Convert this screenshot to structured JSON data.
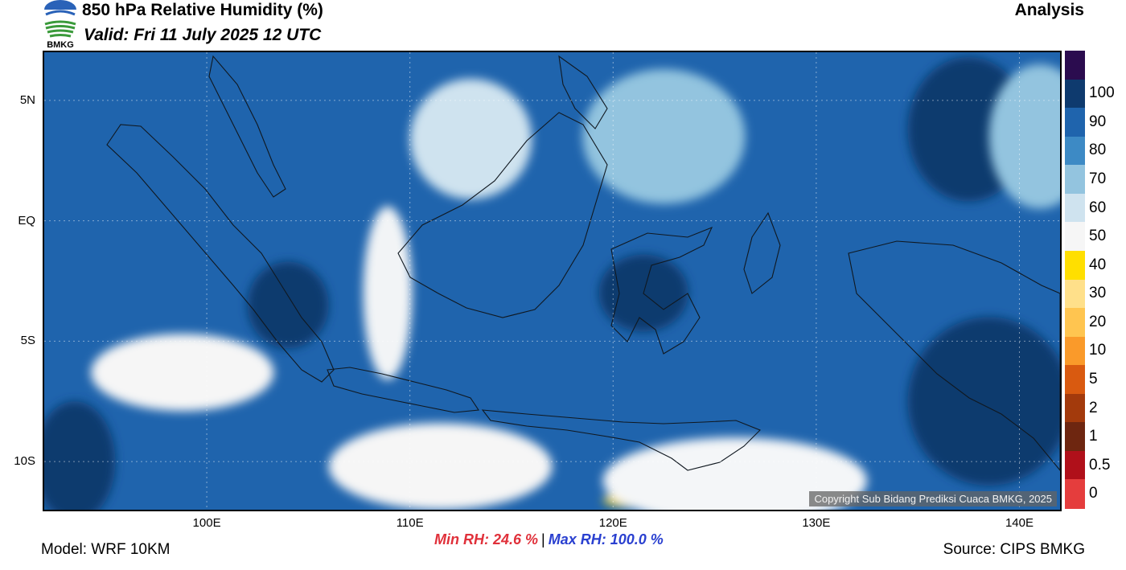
{
  "header": {
    "logo_text": "BMKG",
    "title": "850 hPa Relative Humidity (%)",
    "valid": "Valid: Fri 11 July 2025 12 UTC",
    "analysis": "Analysis"
  },
  "map": {
    "lon_range": [
      92,
      142
    ],
    "lat_range": [
      -12,
      7
    ],
    "x_ticks": [
      {
        "lon": 100,
        "label": "100E"
      },
      {
        "lon": 110,
        "label": "110E"
      },
      {
        "lon": 120,
        "label": "120E"
      },
      {
        "lon": 130,
        "label": "130E"
      },
      {
        "lon": 140,
        "label": "140E"
      }
    ],
    "y_ticks": [
      {
        "lat": 5,
        "label": "5N"
      },
      {
        "lat": 0,
        "label": "EQ"
      },
      {
        "lat": -5,
        "label": "5S"
      },
      {
        "lat": -10,
        "label": "10S"
      }
    ],
    "background_color": "#1f64ad",
    "dry_zones": [
      {
        "lon": 99.5,
        "lat": -6.1,
        "rlon": 2.4,
        "rlat": 0.7,
        "color": "#ffdf00"
      },
      {
        "lon": 98.8,
        "lat": -6.3,
        "rlon": 4.5,
        "rlat": 1.6,
        "color": "#f6f6f6"
      },
      {
        "lon": 108.9,
        "lat": -1.8,
        "rlon": 0.4,
        "rlat": 0.7,
        "color": "#ffdf00"
      },
      {
        "lon": 108.9,
        "lat": -3.0,
        "rlon": 1.2,
        "rlat": 3.6,
        "color": "#f2f4f6"
      },
      {
        "lon": 111.2,
        "lat": -9.9,
        "rlon": 2.8,
        "rlat": 1.0,
        "color": "#ffe08a"
      },
      {
        "lon": 111.5,
        "lat": -10.2,
        "rlon": 5.5,
        "rlat": 1.8,
        "color": "#f6f6f6"
      },
      {
        "lon": 124.5,
        "lat": -11.6,
        "rlon": 5.0,
        "rlat": 0.5,
        "color": "#ffdf00"
      },
      {
        "lon": 126.0,
        "lat": -10.8,
        "rlon": 6.5,
        "rlat": 1.8,
        "color": "#f4f6f8"
      },
      {
        "lon": 113.0,
        "lat": 3.4,
        "rlon": 3.0,
        "rlat": 2.5,
        "color": "#cfe3ef"
      },
      {
        "lon": 122.5,
        "lat": 3.5,
        "rlon": 4.0,
        "rlat": 2.8,
        "color": "#93c4df"
      },
      {
        "lon": 141.0,
        "lat": 3.5,
        "rlon": 2.5,
        "rlat": 3.0,
        "color": "#93c4df"
      }
    ],
    "moist_zones": [
      {
        "lon": 137.5,
        "lat": 3.8,
        "rlon": 3.0,
        "rlat": 3.0,
        "color": "#0e3a6e"
      },
      {
        "lon": 138.5,
        "lat": -7.5,
        "rlon": 4.0,
        "rlat": 3.5,
        "color": "#0e3a6e"
      },
      {
        "lon": 104.0,
        "lat": -3.5,
        "rlon": 2.0,
        "rlat": 1.8,
        "color": "#0e3a6e"
      },
      {
        "lon": 121.5,
        "lat": -3.0,
        "rlon": 2.2,
        "rlat": 1.6,
        "color": "#0e3a6e"
      },
      {
        "lon": 93.5,
        "lat": -10.0,
        "rlon": 2.0,
        "rlat": 2.5,
        "color": "#0e3a6e"
      }
    ],
    "copyright": "Copyright Sub Bidang Prediksi Cuaca BMKG, 2025"
  },
  "colorbar": [
    {
      "label": "",
      "color": "#2b0c4f"
    },
    {
      "label": "100",
      "color": "#0e3a6e"
    },
    {
      "label": "90",
      "color": "#1f64ad"
    },
    {
      "label": "80",
      "color": "#3d8ac5"
    },
    {
      "label": "70",
      "color": "#93c4df"
    },
    {
      "label": "60",
      "color": "#cfe3ef"
    },
    {
      "label": "50",
      "color": "#f6f6f6"
    },
    {
      "label": "40",
      "color": "#ffdf00"
    },
    {
      "label": "30",
      "color": "#ffe08a"
    },
    {
      "label": "20",
      "color": "#ffc550"
    },
    {
      "label": "10",
      "color": "#fa9a2a"
    },
    {
      "label": "5",
      "color": "#d95a10"
    },
    {
      "label": "2",
      "color": "#a33a0c"
    },
    {
      "label": "1",
      "color": "#6e2610"
    },
    {
      "label": "0.5",
      "color": "#b0101a"
    },
    {
      "label": "0",
      "color": "#e53d3d"
    }
  ],
  "footer": {
    "model": "Model: WRF 10KM",
    "min_rh": "Min RH:  24.6 %",
    "separator": "|",
    "max_rh": "Max RH: 100.0 %",
    "source": "Source: CIPS BMKG"
  }
}
